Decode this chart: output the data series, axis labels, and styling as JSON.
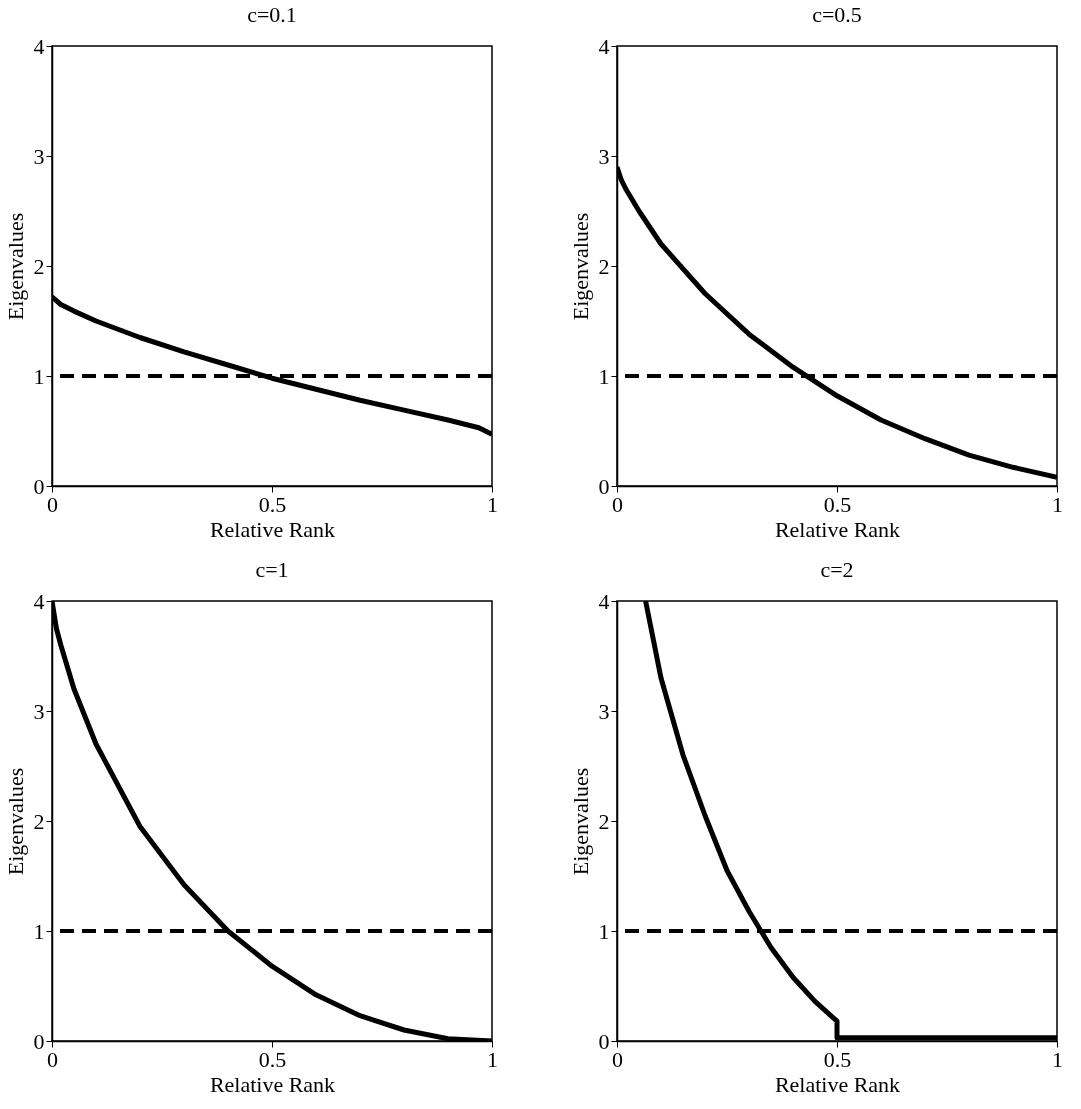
{
  "chart_data": [
    {
      "type": "line",
      "title": "c=0.1",
      "xlabel": "Relative Rank",
      "ylabel": "Eigenvalues",
      "xlim": [
        0,
        1
      ],
      "ylim": [
        0,
        4
      ],
      "xticks": [
        0,
        0.5,
        1
      ],
      "yticks": [
        0,
        1,
        2,
        3,
        4
      ],
      "line_style": "solid",
      "x": [
        0,
        0.02,
        0.05,
        0.1,
        0.2,
        0.3,
        0.4,
        0.5,
        0.6,
        0.7,
        0.8,
        0.9,
        0.97,
        1
      ],
      "series": [
        {
          "color": "#000000",
          "values": [
            1.72,
            1.65,
            1.59,
            1.5,
            1.35,
            1.22,
            1.1,
            0.98,
            0.88,
            0.78,
            0.69,
            0.6,
            0.53,
            0.47
          ]
        }
      ],
      "ref_lines": [
        {
          "axis": "y",
          "value": 1,
          "color": "#000000",
          "line_style": "dashed"
        }
      ]
    },
    {
      "type": "line",
      "title": "c=0.5",
      "xlabel": "Relative Rank",
      "ylabel": "Eigenvalues",
      "xlim": [
        0,
        1
      ],
      "ylim": [
        0,
        4
      ],
      "xticks": [
        0,
        0.5,
        1
      ],
      "yticks": [
        0,
        1,
        2,
        3,
        4
      ],
      "line_style": "solid",
      "x": [
        0,
        0.01,
        0.02,
        0.05,
        0.1,
        0.2,
        0.3,
        0.4,
        0.5,
        0.6,
        0.7,
        0.8,
        0.9,
        1
      ],
      "series": [
        {
          "color": "#000000",
          "values": [
            2.9,
            2.78,
            2.7,
            2.5,
            2.2,
            1.75,
            1.38,
            1.08,
            0.82,
            0.6,
            0.43,
            0.28,
            0.17,
            0.08
          ]
        }
      ],
      "ref_lines": [
        {
          "axis": "y",
          "value": 1,
          "color": "#000000",
          "line_style": "dashed"
        }
      ]
    },
    {
      "type": "line",
      "title": "c=1",
      "xlabel": "Relative Rank",
      "ylabel": "Eigenvalues",
      "xlim": [
        0,
        1
      ],
      "ylim": [
        0,
        4
      ],
      "xticks": [
        0,
        0.5,
        1
      ],
      "yticks": [
        0,
        1,
        2,
        3,
        4
      ],
      "line_style": "solid",
      "x": [
        0,
        0.01,
        0.02,
        0.05,
        0.1,
        0.2,
        0.3,
        0.4,
        0.5,
        0.6,
        0.7,
        0.8,
        0.9,
        1
      ],
      "series": [
        {
          "color": "#000000",
          "values": [
            4,
            3.75,
            3.6,
            3.2,
            2.7,
            1.95,
            1.42,
            1.0,
            0.68,
            0.42,
            0.23,
            0.1,
            0.02,
            0
          ]
        }
      ],
      "ref_lines": [
        {
          "axis": "y",
          "value": 1,
          "color": "#000000",
          "line_style": "dashed"
        }
      ]
    },
    {
      "type": "line",
      "title": "c=2",
      "xlabel": "Relative Rank",
      "ylabel": "Eigenvalues",
      "xlim": [
        0,
        1
      ],
      "ylim": [
        0,
        4
      ],
      "xticks": [
        0,
        0.5,
        1
      ],
      "yticks": [
        0,
        1,
        2,
        3,
        4
      ],
      "line_style": "solid",
      "x": [
        0.065,
        0.1,
        0.15,
        0.2,
        0.25,
        0.3,
        0.35,
        0.4,
        0.45,
        0.5,
        0.5,
        1
      ],
      "series": [
        {
          "color": "#000000",
          "values": [
            4,
            3.3,
            2.6,
            2.05,
            1.55,
            1.18,
            0.85,
            0.58,
            0.36,
            0.18,
            0.03,
            0.03
          ]
        }
      ],
      "ref_lines": [
        {
          "axis": "y",
          "value": 1,
          "color": "#000000",
          "line_style": "dashed"
        }
      ]
    }
  ]
}
